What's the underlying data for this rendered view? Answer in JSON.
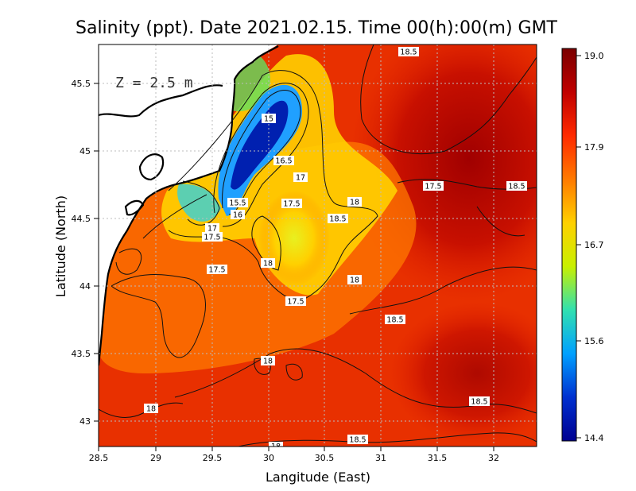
{
  "title": "Salinity (ppt). Date 2021.02.15. Time 00(h):00(m) GMT",
  "depth_label": "Z = 2.5 m",
  "x_axis_title": "Langitude (East)",
  "y_axis_title": "Latitude (North)",
  "x_ticks": [
    "28.5",
    "29",
    "29.5",
    "30",
    "30.5",
    "31",
    "31.5",
    "32"
  ],
  "y_ticks": [
    "45.5",
    "45",
    "44.5",
    "44",
    "43.5",
    "43"
  ],
  "colorbar": {
    "ticks": [
      "19.0",
      "17.9",
      "16.7",
      "15.6",
      "14.4"
    ],
    "colors": [
      "#7a0000",
      "#c00000",
      "#ff2a00",
      "#ff7a00",
      "#ffd000",
      "#c8f000",
      "#30e0b0",
      "#00a0ff",
      "#0030d0",
      "#000090"
    ]
  },
  "contour_labels": [
    {
      "text": "18.5"
    },
    {
      "text": "15"
    },
    {
      "text": "16.5"
    },
    {
      "text": "17"
    },
    {
      "text": "15.5"
    },
    {
      "text": "16"
    },
    {
      "text": "17.5"
    },
    {
      "text": "18"
    },
    {
      "text": "17.5"
    },
    {
      "text": "18.5"
    },
    {
      "text": "18.5"
    },
    {
      "text": "17"
    },
    {
      "text": "17.5"
    },
    {
      "text": "17.5"
    },
    {
      "text": "18"
    },
    {
      "text": "17.5"
    },
    {
      "text": "18"
    },
    {
      "text": "17.5"
    },
    {
      "text": "18.5"
    },
    {
      "text": "18"
    },
    {
      "text": "18.5"
    },
    {
      "text": "18"
    },
    {
      "text": "18.5"
    },
    {
      "text": "18"
    }
  ]
}
